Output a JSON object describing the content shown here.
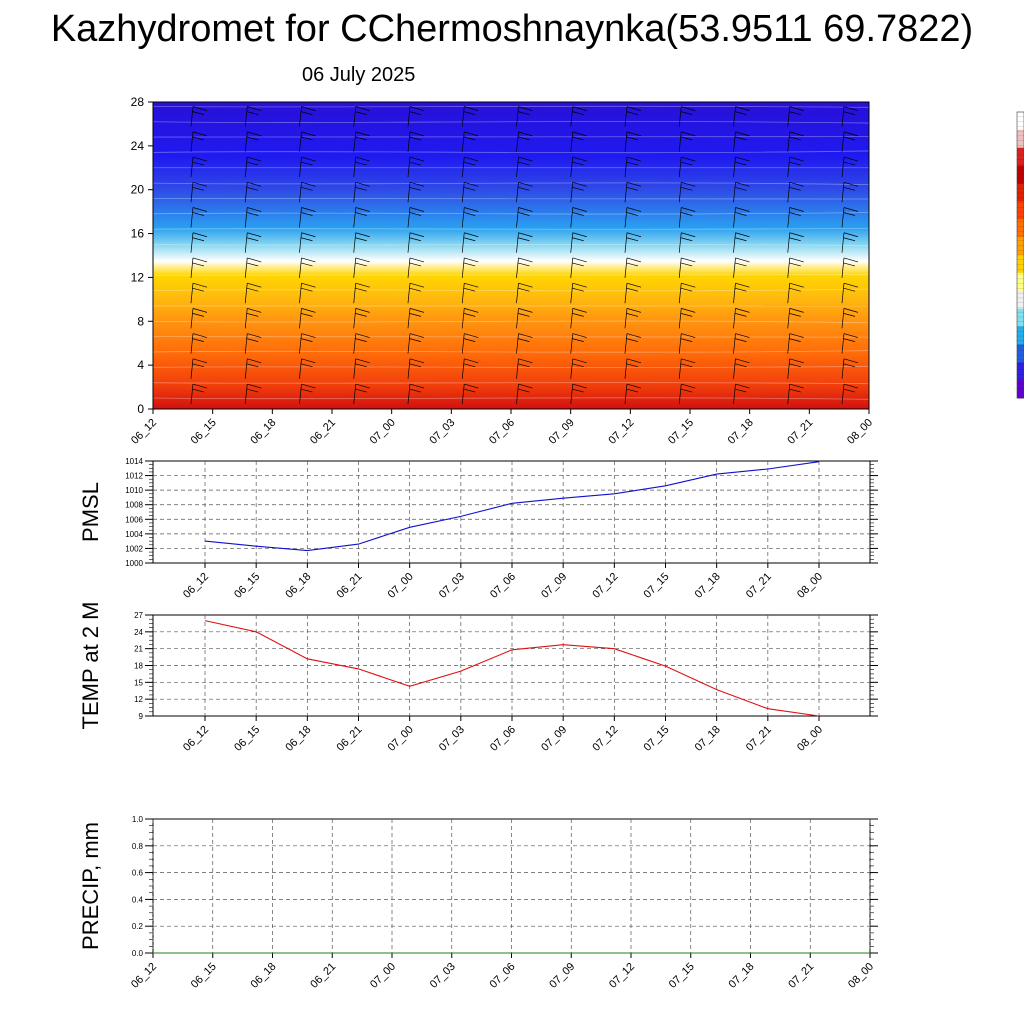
{
  "title": "Kazhydromet for CChermoshnaynka(53.9511 69.7822)",
  "subtitle": "06 July 2025",
  "chart_data": [
    {
      "type": "heatmap",
      "name": "vertical-profile",
      "x_ticks": [
        "06_12",
        "06_15",
        "06_18",
        "06_21",
        "07_00",
        "07_03",
        "07_06",
        "07_09",
        "07_12",
        "07_15",
        "07_18",
        "07_21",
        "08_00"
      ],
      "y_ticks": [
        "0",
        "4",
        "8",
        "12",
        "16",
        "20",
        "24",
        "28"
      ],
      "ylim": [
        0,
        28
      ],
      "colors": [
        "#d01010",
        "#f03c0c",
        "#ff6a0a",
        "#ff9410",
        "#ffb80e",
        "#ffd600",
        "#ffffff",
        "#87d6f0",
        "#2aa0f0",
        "#2f4be6",
        "#1f1af0",
        "#2810d8"
      ],
      "color_stops_y": [
        0,
        2,
        5,
        8,
        10,
        12.2,
        13.5,
        15,
        16.5,
        20,
        23,
        28
      ],
      "legend": "right"
    },
    {
      "type": "line",
      "name": "pmsl",
      "ylabel": "PMSL",
      "x_ticks": [
        "06_12",
        "06_15",
        "06_18",
        "06_21",
        "07_00",
        "07_03",
        "07_06",
        "07_09",
        "07_12",
        "07_15",
        "07_18",
        "07_21",
        "08_00"
      ],
      "y_ticks": [
        "1000",
        "1002",
        "1004",
        "1006",
        "1008",
        "1010",
        "1012",
        "1014"
      ],
      "ylim": [
        1000,
        1014
      ],
      "values": [
        1003.0,
        1002.3,
        1001.7,
        1002.6,
        1004.9,
        1006.4,
        1008.2,
        1008.9,
        1009.5,
        1010.6,
        1012.2,
        1012.9,
        1013.9
      ],
      "color": "#1010d0",
      "grid": true
    },
    {
      "type": "line",
      "name": "temp-2m",
      "ylabel": "TEMP at 2 M",
      "x_ticks": [
        "06_12",
        "06_15",
        "06_18",
        "06_21",
        "07_00",
        "07_03",
        "07_06",
        "07_09",
        "07_12",
        "07_15",
        "07_18",
        "07_21",
        "08_00"
      ],
      "y_ticks": [
        "9",
        "12",
        "15",
        "18",
        "21",
        "24",
        "27"
      ],
      "ylim": [
        9,
        27
      ],
      "values": [
        26.0,
        24.0,
        19.2,
        17.4,
        14.3,
        17.0,
        20.8,
        21.7,
        21.0,
        17.9,
        13.7,
        10.3,
        9.0
      ],
      "color": "#e01010",
      "grid": true
    },
    {
      "type": "line",
      "name": "precip",
      "ylabel": "PRECIP, mm",
      "x_ticks": [
        "06_12",
        "06_15",
        "06_18",
        "06_21",
        "07_00",
        "07_03",
        "07_06",
        "07_09",
        "07_12",
        "07_15",
        "07_18",
        "07_21",
        "08_00"
      ],
      "y_ticks": [
        "0.0",
        "0.2",
        "0.4",
        "0.6",
        "0.8",
        "1.0"
      ],
      "ylim": [
        0,
        1
      ],
      "values": [
        0,
        0,
        0,
        0,
        0,
        0,
        0,
        0,
        0,
        0,
        0,
        0,
        0
      ],
      "color": "#208020",
      "grid": true
    }
  ],
  "colorbar": {
    "colors": [
      "#ffffff",
      "#f0c0c0",
      "#e02020",
      "#c00000",
      "#e02000",
      "#ff4000",
      "#ff7000",
      "#ffa000",
      "#ffd000",
      "#ffff80",
      "#f0f0f0",
      "#80e0f0",
      "#20b0f0",
      "#2060e0",
      "#3020e0",
      "#6000d0"
    ]
  }
}
